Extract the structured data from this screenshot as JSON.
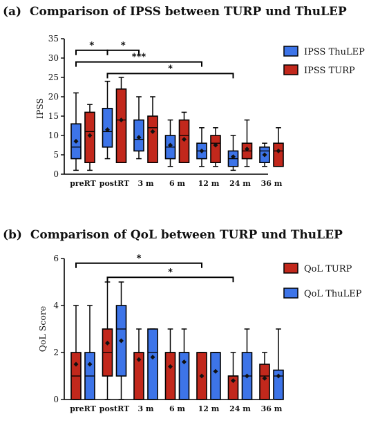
{
  "colors": {
    "thulep": "#3d74e8",
    "turp": "#c2281c",
    "box_stroke": "#000000"
  },
  "chart_data": [
    {
      "type": "box",
      "panel": "(a)",
      "title": "Comparison of IPSS between TURP und ThuLEP",
      "ylabel": "IPSS",
      "xlabel": "",
      "ylim": [
        0,
        35
      ],
      "yticks": [
        0,
        5,
        10,
        15,
        20,
        25,
        30,
        35
      ],
      "grid": false,
      "legend_position": "right",
      "categories": [
        "preRT",
        "postRT",
        "3 m",
        "6 m",
        "12 m",
        "24 m",
        "36 m"
      ],
      "series": [
        {
          "name": "IPSS ThuLEP",
          "color_key": "thulep",
          "boxes": [
            {
              "min": 1,
              "q1": 4,
              "median": 7,
              "q3": 13,
              "max": 21,
              "mean": 8.5
            },
            {
              "min": 4,
              "q1": 7,
              "median": 11,
              "q3": 17,
              "max": 24,
              "mean": 11.5
            },
            {
              "min": 4,
              "q1": 6,
              "median": 9,
              "q3": 14,
              "max": 20,
              "mean": 9.5
            },
            {
              "min": 2,
              "q1": 4,
              "median": 7,
              "q3": 10,
              "max": 14,
              "mean": 7.5
            },
            {
              "min": 2,
              "q1": 4,
              "median": 6,
              "q3": 8,
              "max": 12,
              "mean": 6
            },
            {
              "min": 1,
              "q1": 2,
              "median": 4,
              "q3": 6,
              "max": 10,
              "mean": 4.5
            },
            {
              "min": 2,
              "q1": 3,
              "median": 6,
              "q3": 7,
              "max": 8,
              "mean": 5
            }
          ]
        },
        {
          "name": "IPSS TURP",
          "color_key": "turp",
          "boxes": [
            {
              "min": 1,
              "q1": 3,
              "median": 11,
              "q3": 16,
              "max": 18,
              "mean": 10
            },
            {
              "min": 3,
              "q1": 3,
              "median": 14,
              "q3": 22,
              "max": 25,
              "mean": 14
            },
            {
              "min": 3,
              "q1": 3,
              "median": 12,
              "q3": 15,
              "max": 20,
              "mean": 11
            },
            {
              "min": 3,
              "q1": 3,
              "median": 10,
              "q3": 14,
              "max": 16,
              "mean": 9
            },
            {
              "min": 2,
              "q1": 3,
              "median": 8,
              "q3": 10,
              "max": 12,
              "mean": 7.5
            },
            {
              "min": 2,
              "q1": 4,
              "median": 6,
              "q3": 8,
              "max": 14,
              "mean": 6.5
            },
            {
              "min": 2,
              "q1": 2,
              "median": 6,
              "q3": 8,
              "max": 12,
              "mean": 6
            }
          ]
        }
      ],
      "significance": [
        {
          "from": 0,
          "to": 1,
          "label": "*",
          "y": 32
        },
        {
          "from": 1,
          "to": 2,
          "label": "*",
          "y": 32
        },
        {
          "from": 0,
          "to": 4,
          "label": "***",
          "y": 29
        },
        {
          "from": 1,
          "to": 5,
          "label": "*",
          "y": 26
        }
      ]
    },
    {
      "type": "box",
      "panel": "(b)",
      "title": "Comparison of QoL between TURP und ThuLEP",
      "ylabel": "QoL Score",
      "xlabel": "",
      "ylim": [
        0,
        6
      ],
      "yticks": [
        0,
        2,
        4,
        6
      ],
      "grid": false,
      "legend_position": "right",
      "categories": [
        "preRT",
        "postRT",
        "3 m",
        "6 m",
        "12 m",
        "24 m",
        "36 m"
      ],
      "series": [
        {
          "name": "QoL  TURP",
          "color_key": "turp",
          "boxes": [
            {
              "min": 0,
              "q1": 0,
              "median": 1,
              "q3": 2,
              "max": 4,
              "mean": 1.5
            },
            {
              "min": 0,
              "q1": 1,
              "median": 2,
              "q3": 3,
              "max": 5,
              "mean": 2.4
            },
            {
              "min": 0,
              "q1": 0,
              "median": 2,
              "q3": 2,
              "max": 3,
              "mean": 1.7
            },
            {
              "min": 0,
              "q1": 0,
              "median": 2,
              "q3": 2,
              "max": 3,
              "mean": 1.4
            },
            {
              "min": 0,
              "q1": 0,
              "median": 2,
              "q3": 2,
              "max": 2,
              "mean": 1
            },
            {
              "min": 0,
              "q1": 0,
              "median": 1,
              "q3": 1,
              "max": 2,
              "mean": 0.8
            },
            {
              "min": 0,
              "q1": 0,
              "median": 1,
              "q3": 1.5,
              "max": 2,
              "mean": 0.9
            }
          ]
        },
        {
          "name": "QoL ThuLEP",
          "color_key": "thulep",
          "boxes": [
            {
              "min": 0,
              "q1": 0,
              "median": 1,
              "q3": 2,
              "max": 4,
              "mean": 1.5
            },
            {
              "min": 0,
              "q1": 1,
              "median": 3,
              "q3": 4,
              "max": 5,
              "mean": 2.5
            },
            {
              "min": 0,
              "q1": 0,
              "median": 2,
              "q3": 3,
              "max": 3,
              "mean": 1.8
            },
            {
              "min": 0,
              "q1": 0,
              "median": 2,
              "q3": 2,
              "max": 3,
              "mean": 1.6
            },
            {
              "min": 0,
              "q1": 0,
              "median": 2,
              "q3": 2,
              "max": 2,
              "mean": 1.2
            },
            {
              "min": 0,
              "q1": 0,
              "median": 1,
              "q3": 2,
              "max": 3,
              "mean": 1
            },
            {
              "min": 0,
              "q1": 0,
              "median": 1,
              "q3": 1.25,
              "max": 3,
              "mean": 1
            }
          ]
        }
      ],
      "significance": [
        {
          "from": 0,
          "to": 4,
          "label": "*",
          "y": 5.8
        },
        {
          "from": 1,
          "to": 5,
          "label": "*",
          "y": 5.2
        }
      ]
    }
  ]
}
